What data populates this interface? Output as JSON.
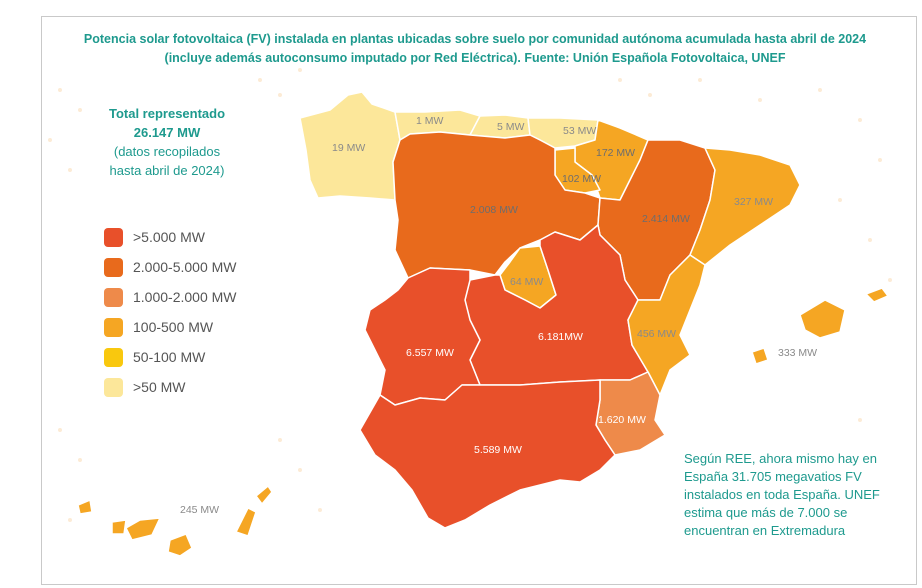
{
  "title": "Potencia solar fotovoltaica (FV) instalada en plantas ubicadas sobre suelo por comunidad autónoma acumulada hasta abril de 2024 (incluye además autoconsumo imputado por Red Eléctrica). Fuente: Unión Española Fotovoltaica, UNEF",
  "total": {
    "line1": "Total representado",
    "line2": "26.147 MW",
    "line3": "(datos recopilados",
    "line4": "hasta abril de 2024)"
  },
  "legend": [
    {
      "label": ">5.000 MW",
      "color": "#e8502a"
    },
    {
      "label": "2.000-5.000 MW",
      "color": "#e86a1c"
    },
    {
      "label": "1.000-2.000 MW",
      "color": "#ee8a4a"
    },
    {
      "label": "100-500 MW",
      "color": "#f5a623"
    },
    {
      "label": "50-100 MW",
      "color": "#f9c80e"
    },
    {
      "label": ">50 MW",
      "color": "#fce79a"
    }
  ],
  "regions": {
    "galicia": "19 MW",
    "asturias": "1 MW",
    "cantabria": "5 MW",
    "pais_vasco": "53 MW",
    "navarra": "172 MW",
    "la_rioja": "102 MW",
    "castilla_leon": "2.008 MW",
    "aragon": "2.414 MW",
    "cataluna": "327 MW",
    "madrid": "64 MW",
    "castilla_la_mancha": "6.181MW",
    "extremadura": "6.557 MW",
    "valencia": "456 MW",
    "baleares": "333 MW",
    "murcia": "1.620 MW",
    "andalucia": "5.589 MW",
    "canarias": "245 MW"
  },
  "note": "Según REE, ahora mismo hay en España 31.705 megavatios FV instalados en toda España. UNEF estima que más de 7.000 se encuentran en Extremadura"
}
